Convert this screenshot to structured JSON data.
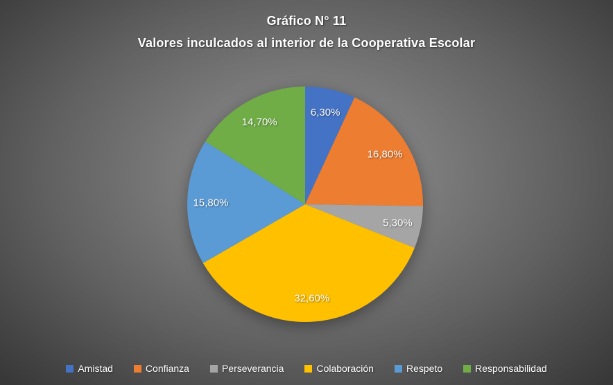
{
  "title": {
    "line1": "Gráfico N° 11",
    "line2": "Valores inculcados al interior de la Cooperativa Escolar"
  },
  "chart_data": {
    "type": "pie",
    "title": "Gráfico N° 11 — Valores inculcados al interior de la Cooperativa Escolar",
    "categories": [
      "Amistad",
      "Confianza",
      "Perseverancia",
      "Colaboración",
      "Respeto",
      "Responsabilidad"
    ],
    "values": [
      6.3,
      16.8,
      5.3,
      32.6,
      15.8,
      14.7
    ],
    "value_labels": [
      "6,30%",
      "16,80%",
      "5,30%",
      "32,60%",
      "15,80%",
      "14,70%"
    ],
    "colors": [
      "#4472C4",
      "#ED7D31",
      "#A5A5A5",
      "#FFC000",
      "#5B9BD5",
      "#70AD47"
    ],
    "legend_position": "bottom",
    "start_angle_deg": 0,
    "direction": "clockwise",
    "label_color": "#FFFFFF",
    "background": "dark-gray-radial-gradient"
  }
}
